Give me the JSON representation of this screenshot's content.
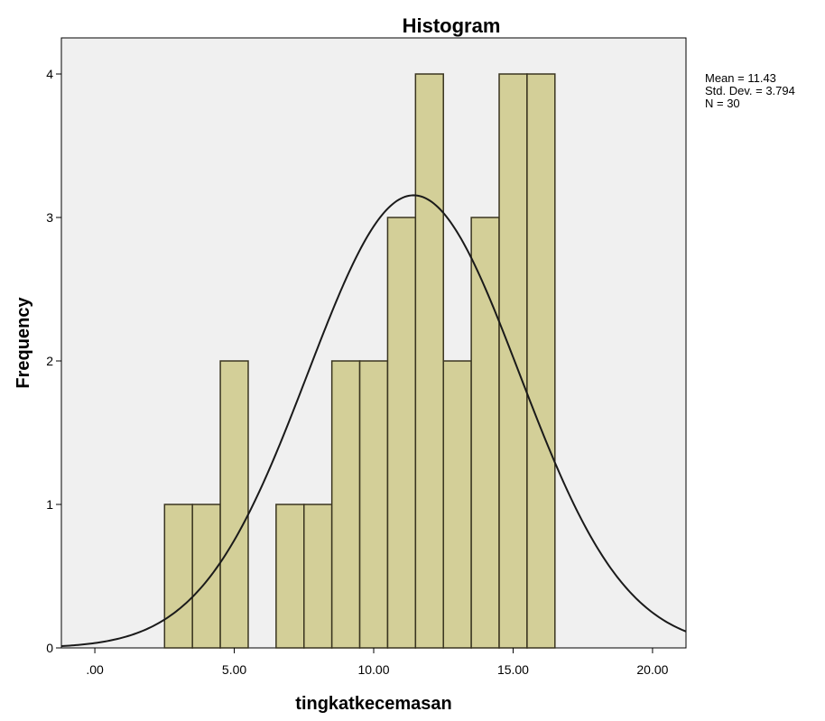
{
  "chart_data": {
    "type": "bar",
    "title": "Histogram",
    "xlabel": "tingkatkecemasan",
    "ylabel": "Frequency",
    "xlim": [
      -1.2,
      21.2
    ],
    "ylim": [
      0,
      4
    ],
    "x_ticks": [
      0,
      5,
      10,
      15,
      20
    ],
    "x_tick_labels": [
      ".00",
      "5.00",
      "10.00",
      "15.00",
      "20.00"
    ],
    "y_ticks": [
      0,
      1,
      2,
      3,
      4
    ],
    "y_tick_labels": [
      "0",
      "1",
      "2",
      "3",
      "4"
    ],
    "bin_width": 1,
    "bins": [
      {
        "x": 3,
        "count": 1
      },
      {
        "x": 4,
        "count": 1
      },
      {
        "x": 5,
        "count": 2
      },
      {
        "x": 7,
        "count": 1
      },
      {
        "x": 8,
        "count": 1
      },
      {
        "x": 9,
        "count": 2
      },
      {
        "x": 10,
        "count": 2
      },
      {
        "x": 11,
        "count": 3
      },
      {
        "x": 12,
        "count": 4
      },
      {
        "x": 13,
        "count": 2
      },
      {
        "x": 14,
        "count": 3
      },
      {
        "x": 15,
        "count": 4
      },
      {
        "x": 16,
        "count": 4
      }
    ],
    "normal_curve": {
      "mean": 11.43,
      "std": 3.794,
      "n": 30
    },
    "stats_text": [
      "Mean = 11.43",
      "Std. Dev. = 3.794",
      "N = 30"
    ],
    "colors": {
      "bar_fill": "#d3cf98",
      "bar_stroke": "#3a3520",
      "plot_bg": "#f0f0f0",
      "curve": "#1a1a1a"
    }
  }
}
